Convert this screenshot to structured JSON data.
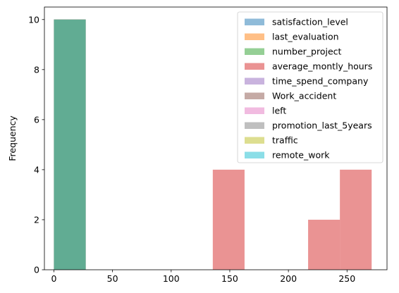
{
  "chart_data": {
    "type": "bar",
    "title": "",
    "xlabel": "",
    "ylabel": "Frequency",
    "xlim": [
      -8.1,
      284.1
    ],
    "ylim": [
      0,
      10.5
    ],
    "xticks": [
      0,
      50,
      100,
      150,
      200,
      250
    ],
    "yticks": [
      0,
      2,
      4,
      6,
      8,
      10
    ],
    "grid": false,
    "legend_position": "top-right",
    "bin_edges": [
      0,
      27.1,
      54.2,
      81.3,
      108.4,
      135.5,
      162.6,
      189.7,
      216.8,
      243.9,
      271
    ],
    "series": [
      {
        "name": "satisfaction_level",
        "color": "#1f77b4",
        "counts": [
          10,
          0,
          0,
          0,
          0,
          0,
          0,
          0,
          0,
          0
        ]
      },
      {
        "name": "last_evaluation",
        "color": "#ff7f0e",
        "counts": [
          10,
          0,
          0,
          0,
          0,
          0,
          0,
          0,
          0,
          0
        ]
      },
      {
        "name": "number_project",
        "color": "#2ca02c",
        "counts": [
          10,
          0,
          0,
          0,
          0,
          0,
          0,
          0,
          0,
          0
        ]
      },
      {
        "name": "average_montly_hours",
        "color": "#d62728",
        "counts": [
          0,
          0,
          0,
          0,
          0,
          4,
          0,
          0,
          2,
          4
        ]
      },
      {
        "name": "time_spend_company",
        "color": "#9467bd",
        "counts": [
          10,
          0,
          0,
          0,
          0,
          0,
          0,
          0,
          0,
          0
        ]
      },
      {
        "name": "Work_accident",
        "color": "#8c564b",
        "counts": [
          10,
          0,
          0,
          0,
          0,
          0,
          0,
          0,
          0,
          0
        ]
      },
      {
        "name": "left",
        "color": "#e377c2",
        "counts": [
          10,
          0,
          0,
          0,
          0,
          0,
          0,
          0,
          0,
          0
        ]
      },
      {
        "name": "promotion_last_5years",
        "color": "#7f7f7f",
        "counts": [
          10,
          0,
          0,
          0,
          0,
          0,
          0,
          0,
          0,
          0
        ]
      },
      {
        "name": "traffic",
        "color": "#bcbd22",
        "counts": [
          10,
          0,
          0,
          0,
          0,
          0,
          0,
          0,
          0,
          0
        ]
      },
      {
        "name": "remote_work",
        "color": "#17becf",
        "counts": [
          10,
          0,
          0,
          0,
          0,
          0,
          0,
          0,
          0,
          0
        ]
      }
    ]
  }
}
